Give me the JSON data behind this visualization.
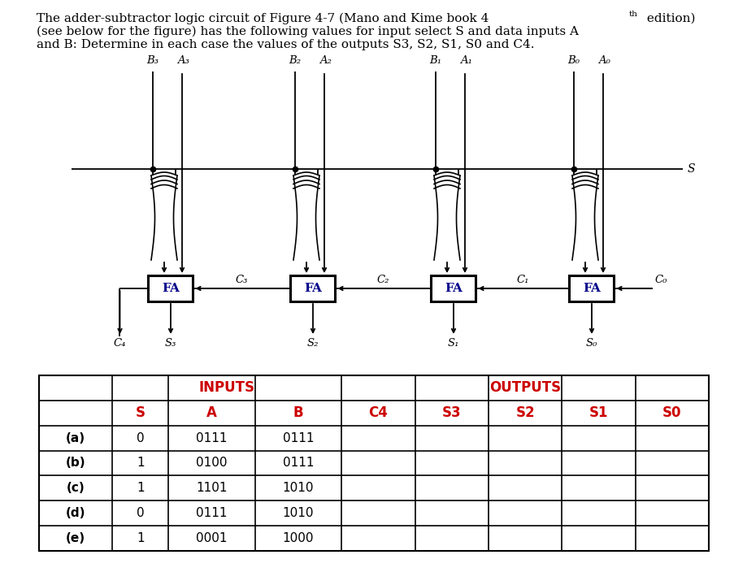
{
  "title_line1a": "The adder-subtractor logic circuit of Figure 4-7 (Mano and Kime book 4",
  "title_sup": "th",
  "title_line1b": " edition)",
  "title_line2": "(see below for the figure) has the following values for input select S and data inputs A",
  "title_line3": "and B: Determine in each case the values of the outputs S3, S2, S1, S0 and C4.",
  "background": "#ffffff",
  "text_color": "#000000",
  "red_color": "#cc0000",
  "blue_color": "#00008b",
  "table_header_inputs": "INPUTS",
  "table_header_outputs": "OUTPUTS",
  "col_headers": [
    "S",
    "A",
    "B",
    "C4",
    "S3",
    "S2",
    "S1",
    "S0"
  ],
  "row_labels": [
    "(a)",
    "(b)",
    "(c)",
    "(d)",
    "(e)"
  ],
  "row_S": [
    0,
    1,
    1,
    0,
    1
  ],
  "row_A": [
    "0111",
    "0100",
    "1101",
    "0111",
    "0001"
  ],
  "row_B": [
    "0111",
    "0111",
    "1010",
    "1010",
    "1000"
  ],
  "B_labels": [
    "B₃",
    "B₂",
    "B₁",
    "B₀"
  ],
  "A_labels": [
    "A₃",
    "A₂",
    "A₁",
    "A₀"
  ],
  "S_out_labels": [
    "S₃",
    "S₂",
    "S₁",
    "S₀"
  ],
  "C_labels": [
    "C₃",
    "C₂",
    "C₁",
    "C₀"
  ],
  "C4_label": "C₄",
  "S_label": "S"
}
